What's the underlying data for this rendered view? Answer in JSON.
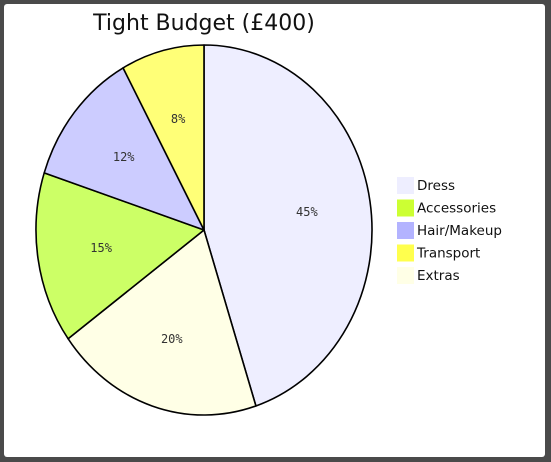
{
  "chart_data": {
    "type": "pie",
    "title": "Tight Budget (£400)",
    "categories": [
      "Dress",
      "Accessories",
      "Hair/Makeup",
      "Transport",
      "Extras"
    ],
    "values": [
      45,
      15,
      12,
      8,
      20
    ],
    "value_labels": [
      "45%",
      "15%",
      "12%",
      "8%",
      "20%"
    ],
    "slice_order": [
      "Dress",
      "Extras",
      "Accessories",
      "Hair/Makeup",
      "Transport"
    ],
    "start": "top",
    "direction": "clockwise",
    "legend_position": "right",
    "colors": {
      "Dress": "#eeeeff",
      "Accessories": "#ccff66",
      "Hair/Makeup": "#ccccff",
      "Transport": "#ffff77",
      "Extras": "#ffffe6"
    },
    "legend_colors": {
      "Dress": "#eeeeff",
      "Accessories": "#ccff33",
      "Hair/Makeup": "#b3b3ff",
      "Transport": "#ffff4d",
      "Extras": "#ffffe6"
    }
  }
}
